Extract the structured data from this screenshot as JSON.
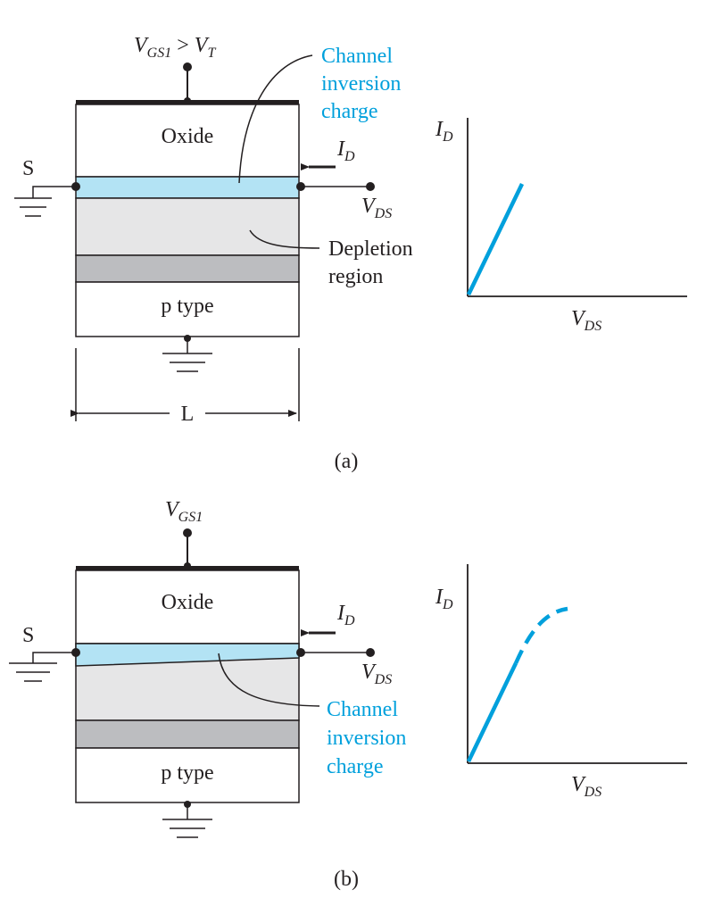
{
  "colors": {
    "ink": "#231f20",
    "accent": "#00a0dc",
    "channel_fill": "#b3e3f4",
    "depletion_fill": "#e6e6e7",
    "doped_layer_fill": "#bcbdc0",
    "oxide_fill": "#ffffff"
  },
  "panel_a": {
    "gate_voltage": {
      "v": "V",
      "sub": "GS1",
      "gt": " > ",
      "v2": "V",
      "sub2": "T"
    },
    "oxide_label": "Oxide",
    "source_label": "S",
    "drain_current": {
      "v": "I",
      "sub": "D"
    },
    "drain_voltage": {
      "v": "V",
      "sub": "DS"
    },
    "channel_label": [
      "Channel",
      "inversion",
      "charge"
    ],
    "depletion_label": [
      "Depletion",
      "region"
    ],
    "substrate_label": "p type",
    "length_label": "L",
    "caption": "(a)",
    "graph": {
      "ylabel": {
        "v": "I",
        "sub": "D"
      },
      "xlabel": {
        "v": "V",
        "sub": "DS"
      }
    }
  },
  "panel_b": {
    "gate_voltage": {
      "v": "V",
      "sub": "GS1"
    },
    "oxide_label": "Oxide",
    "source_label": "S",
    "drain_current": {
      "v": "I",
      "sub": "D"
    },
    "drain_voltage": {
      "v": "V",
      "sub": "DS"
    },
    "channel_label": [
      "Channel",
      "inversion",
      "charge"
    ],
    "substrate_label": "p type",
    "caption": "(b)",
    "graph": {
      "ylabel": {
        "v": "I",
        "sub": "D"
      },
      "xlabel": {
        "v": "V",
        "sub": "DS"
      },
      "curve": {
        "linear_part": "solid",
        "saturation_part": "dashed"
      }
    }
  }
}
